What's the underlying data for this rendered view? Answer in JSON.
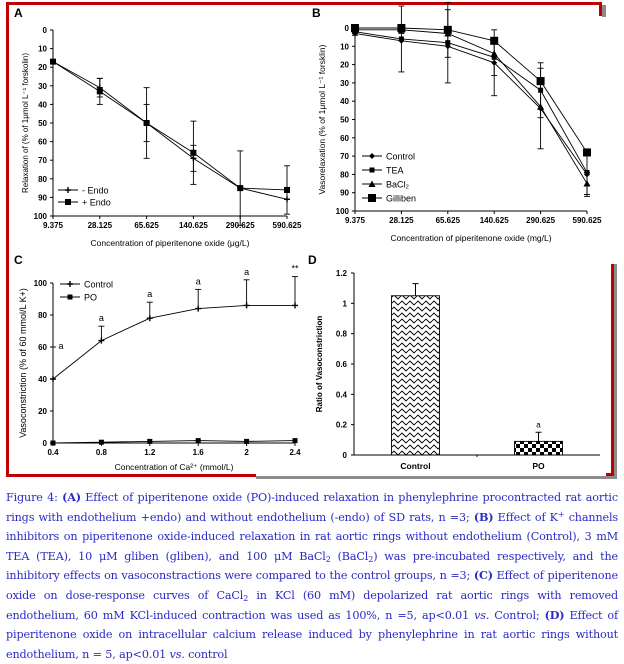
{
  "chart_data": [
    {
      "panel": "A",
      "type": "line",
      "xlabel": "Concentration of piperitenone oxide (μg/L)",
      "ylabel": "Relaxation of (% of 1μmol L⁻¹ forskolin)",
      "categories": [
        "9.375",
        "28.125",
        "65.625",
        "140.625",
        "290.625",
        "590.625"
      ],
      "ylim": [
        0,
        100
      ],
      "y_inverted": true,
      "yticks": [
        0,
        10,
        20,
        30,
        40,
        50,
        60,
        70,
        80,
        90,
        100
      ],
      "legend_position": "bottom-left",
      "series": [
        {
          "name": "- Endo",
          "marker": "plus",
          "values": [
            17,
            31,
            50,
            69,
            85,
            91
          ],
          "err": [
            0,
            5,
            10,
            7,
            0,
            0
          ]
        },
        {
          "name": "+ Endo",
          "marker": "square",
          "values": [
            17,
            33,
            50,
            66,
            85,
            86
          ],
          "err": [
            0,
            7,
            19,
            17,
            20,
            13
          ]
        }
      ]
    },
    {
      "panel": "B",
      "type": "line",
      "xlabel": "Concentration of piperitenone oxide (mg/L)",
      "ylabel": "Vasorelaxation (% of 1μmol L⁻¹ forsklin)",
      "categories": [
        "9.375",
        "28.125",
        "65.625",
        "140.625",
        "290.625",
        "590.625"
      ],
      "ylim": [
        0,
        100
      ],
      "y_inverted": true,
      "yticks": [
        0,
        10,
        20,
        30,
        40,
        50,
        60,
        70,
        80,
        90,
        100
      ],
      "legend_position": "bottom-left",
      "series": [
        {
          "name": "Control",
          "marker": "diamond",
          "values": [
            3,
            7,
            10,
            19,
            44,
            80
          ],
          "err": [
            1,
            0,
            0,
            18,
            22,
            12
          ]
        },
        {
          "name": "TEA",
          "marker": "square-small",
          "values": [
            2,
            6,
            8,
            16,
            34,
            79
          ],
          "err": [
            1,
            18,
            22,
            10,
            15,
            0
          ]
        },
        {
          "name": "BaCl₂",
          "marker": "triangle",
          "values": [
            1,
            1,
            3,
            14,
            43,
            85
          ],
          "err": [
            0,
            2,
            13,
            0,
            0,
            6
          ]
        },
        {
          "name": "Gilliben",
          "marker": "square-large",
          "values": [
            0,
            0,
            1,
            7,
            29,
            68
          ],
          "err": [
            0,
            0,
            0,
            0,
            0,
            0
          ]
        }
      ]
    },
    {
      "panel": "C",
      "type": "line",
      "xlabel": "Concentration of Ca²⁺ (mmol/L)",
      "ylabel": "Vasoconstriction (% of 60 mmol/L K+)",
      "categories": [
        "0.4",
        "0.8",
        "1.2",
        "1.6",
        "2",
        "2.4"
      ],
      "ylim": [
        0,
        100
      ],
      "yticks": [
        0,
        20,
        40,
        60,
        80,
        100
      ],
      "legend_position": "top-left",
      "annotations": [
        "a",
        "a",
        "a",
        "a",
        "a",
        "**"
      ],
      "series": [
        {
          "name": "Control",
          "marker": "plus",
          "values": [
            40,
            64,
            78,
            84,
            86,
            86
          ],
          "err": [
            20,
            9,
            10,
            12,
            16,
            18
          ]
        },
        {
          "name": "PO",
          "marker": "square-small",
          "values": [
            0,
            0.5,
            1,
            1.5,
            1,
            1.5
          ],
          "err": [
            0,
            0,
            0,
            0,
            0,
            0
          ]
        }
      ]
    },
    {
      "panel": "D",
      "type": "bar",
      "xlabel": "",
      "ylabel": "Ratio of Vasoconstriction",
      "categories": [
        "Control",
        "PO"
      ],
      "values": [
        1.05,
        0.09
      ],
      "err": [
        0.08,
        0.06
      ],
      "ylim": [
        0,
        1.2
      ],
      "yticks": [
        "0",
        "0.2",
        "0.4",
        "0.6",
        "0.8",
        "1",
        "1.2"
      ],
      "annotations": [
        "",
        "a"
      ]
    }
  ],
  "caption": {
    "fig": "Figure 4: ",
    "A_tag": "(A)",
    "A_text": " Effect of piperitenone oxide (PO)-induced relaxation in phenylephrine procontracted rat aortic rings with endothelium  +endo) and without endothelium (-endo) of SD rats, n =3; ",
    "B_tag": "(B)",
    "B_text1": " Effect of K",
    "B_sup": "+",
    "B_text2": " channels inhibitors on piperitenone oxide-induced relaxation in rat aortic rings without endothelium (Control), 3 mM TEA (TEA), 10 μM gliben (gliben), and 100 μM BaCl",
    "B_sub1": "2",
    "B_text3": " (BaCl",
    "B_sub2": "2",
    "B_text4": ") was pre-incubated respectively, and the inhibitory effects on vasoconstractions were compared to the control groups, n =3; ",
    "C_tag": "(C)",
    "C_text1": " Effect of piperitenone oxide on dose-response curves of CaCl",
    "C_sub": "2",
    "C_text2": " in KCl (60 mM) depolarized rat aortic rings with removed endothelium, 60 mM KCl-induced contraction was used as 100%, n =5, ",
    "C_sig": "ap<0.01 ",
    "C_vs": "vs.",
    "C_text3": " Control; ",
    "D_tag": "(D)",
    "D_text1": " Effect of piperitenone oxide on intracellular calcium release induced by phenylephrine in rat aortic rings without endothelium, n = 5, ",
    "D_sig": "ap<0.01 ",
    "D_vs": "vs.",
    "D_text2": " control"
  },
  "panel_labels": [
    "A",
    "B",
    "C",
    "D"
  ],
  "colors": {
    "frame": "#c00000",
    "shadow": "#8c8c8c",
    "caption": "#2a2ac8",
    "ink": "#000000"
  }
}
